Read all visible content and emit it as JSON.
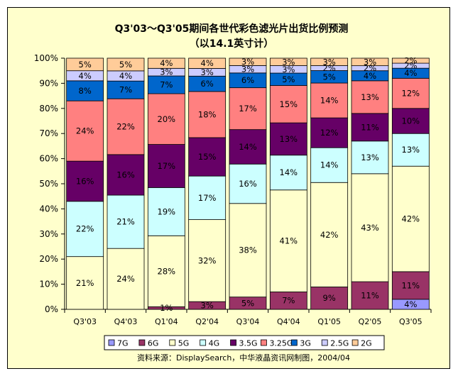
{
  "chart_data": {
    "type": "bar",
    "stacked": "percent",
    "title": "Q3'03～Q3'05期间各世代彩色滤光片出货比例预测",
    "subtitle": "（以14.1英寸计）",
    "source": "资料来源：DisplaySearch，中华液晶资讯网制图，2004/04",
    "categories": [
      "Q3'03",
      "Q4'03",
      "Q1'04",
      "Q2'04",
      "Q3'04",
      "Q4'04",
      "Q1'05",
      "Q2'05",
      "Q3'05"
    ],
    "y_ticks": [
      "0%",
      "10%",
      "20%",
      "30%",
      "40%",
      "50%",
      "60%",
      "70%",
      "80%",
      "90%",
      "100%"
    ],
    "ylim": [
      0,
      100
    ],
    "grid": false,
    "legend_position": "bottom",
    "series": [
      {
        "name": "7G",
        "color": "#9999ff",
        "values": [
          0,
          0,
          0,
          0,
          0,
          0,
          0,
          0,
          4
        ],
        "labels": [
          "",
          "",
          "",
          "",
          "",
          "",
          "",
          "",
          "4%"
        ]
      },
      {
        "name": "6G",
        "color": "#993366",
        "values": [
          0,
          0,
          1,
          3,
          5,
          7,
          9,
          11,
          11
        ],
        "labels": [
          "",
          "",
          "1%",
          "3%",
          "5%",
          "7%",
          "9%",
          "11%",
          "11%"
        ]
      },
      {
        "name": "5G",
        "color": "#ffffcc",
        "values": [
          21,
          24,
          28,
          32,
          38,
          41,
          42,
          43,
          42
        ],
        "labels": [
          "21%",
          "24%",
          "28%",
          "32%",
          "38%",
          "41%",
          "42%",
          "43%",
          "42%"
        ]
      },
      {
        "name": "4G",
        "color": "#ccffff",
        "values": [
          22,
          21,
          19,
          17,
          16,
          14,
          14,
          13,
          13
        ],
        "labels": [
          "22%",
          "21%",
          "19%",
          "17%",
          "16%",
          "14%",
          "14%",
          "13%",
          "13%"
        ]
      },
      {
        "name": "3.5G",
        "color": "#660066",
        "values": [
          16,
          16,
          17,
          15,
          14,
          13,
          12,
          11,
          10
        ],
        "labels": [
          "16%",
          "16%",
          "17%",
          "15%",
          "14%",
          "13%",
          "12%",
          "11%",
          "10%"
        ]
      },
      {
        "name": "3.25G",
        "color": "#ff8080",
        "values": [
          24,
          22,
          20,
          18,
          17,
          15,
          14,
          13,
          12
        ],
        "labels": [
          "24%",
          "22%",
          "20%",
          "18%",
          "17%",
          "15%",
          "14%",
          "13%",
          "12%"
        ]
      },
      {
        "name": "3G",
        "color": "#0066cc",
        "values": [
          8,
          7,
          7,
          6,
          6,
          5,
          5,
          4,
          4
        ],
        "labels": [
          "8%",
          "7%",
          "7%",
          "6%",
          "6%",
          "5%",
          "5%",
          "4%",
          "4%"
        ]
      },
      {
        "name": "2.5G",
        "color": "#ccccff",
        "values": [
          4,
          4,
          3,
          3,
          3,
          3,
          2,
          2,
          2
        ],
        "labels": [
          "4%",
          "4%",
          "3%",
          "3%",
          "3%",
          "3%",
          "2%",
          "2%",
          "2%"
        ]
      },
      {
        "name": "2G",
        "color": "#ffcc99",
        "values": [
          5,
          5,
          4,
          4,
          3,
          3,
          3,
          3,
          2
        ],
        "labels": [
          "5%",
          "5%",
          "4%",
          "4%",
          "3%",
          "3%",
          "3%",
          "3%",
          "2%"
        ]
      }
    ],
    "legend_order": [
      "7G",
      "6G",
      "5G",
      "4G",
      "3.5G",
      "3.25G",
      "3G",
      "2.5G",
      "2G"
    ]
  }
}
